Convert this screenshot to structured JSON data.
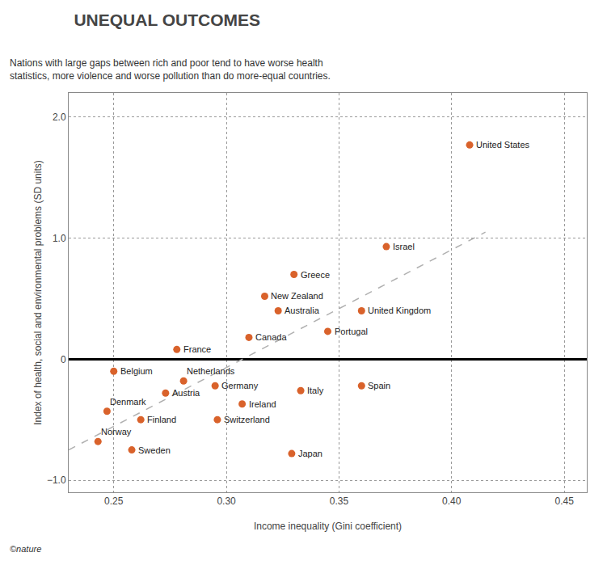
{
  "chart_data": {
    "type": "scatter",
    "title": "UNEQUAL OUTCOMES",
    "subtitle": "Nations with large gaps between rich and poor tend to have worse health\nstatistics, more violence and worse pollution than do more-equal countries.",
    "xlabel": "Income inequality (Gini coefficient)",
    "ylabel": "Index of health, social and environmental problems (SD units)",
    "footnote": "©nature",
    "xlim": [
      0.23,
      0.46
    ],
    "ylim": [
      -1.1,
      2.2
    ],
    "xticks": [
      0.25,
      {
        "value": 0.3,
        "label": "0.30"
      },
      0.35,
      {
        "value": 0.4,
        "label": "0.40"
      },
      0.45
    ],
    "yticks": [
      {
        "value": -1.0,
        "label": "−1.0"
      },
      0,
      {
        "value": 1.0,
        "label": "1.0"
      },
      {
        "value": 2.0,
        "label": "2.0"
      }
    ],
    "grid": true,
    "color": "#d9622b",
    "labels": [
      "United States",
      "Israel",
      "Greece",
      "New Zealand",
      "Australia",
      "United Kingdom",
      "Portugal",
      "Canada",
      "France",
      "Belgium",
      "Netherlands",
      "Germany",
      "Austria",
      "Spain",
      "Italy",
      "Ireland",
      "Denmark",
      "Switzerland",
      "Finland",
      "Norway",
      "Sweden",
      "Japan"
    ],
    "x": [
      0.408,
      0.371,
      0.33,
      0.317,
      0.323,
      0.36,
      0.345,
      0.31,
      0.278,
      0.25,
      0.281,
      0.295,
      0.273,
      0.36,
      0.333,
      0.307,
      0.247,
      0.296,
      0.262,
      0.243,
      0.258,
      0.329
    ],
    "values": [
      1.77,
      0.93,
      0.7,
      0.52,
      0.4,
      0.4,
      0.23,
      0.18,
      0.08,
      -0.1,
      -0.18,
      -0.22,
      -0.28,
      -0.22,
      -0.26,
      -0.37,
      -0.43,
      -0.5,
      -0.5,
      -0.68,
      -0.75,
      -0.78
    ],
    "trendline": {
      "x": [
        0.23,
        0.415
      ],
      "values": [
        -0.75,
        1.05
      ],
      "color": "#b0b0b0",
      "line_style": "dashed"
    }
  }
}
